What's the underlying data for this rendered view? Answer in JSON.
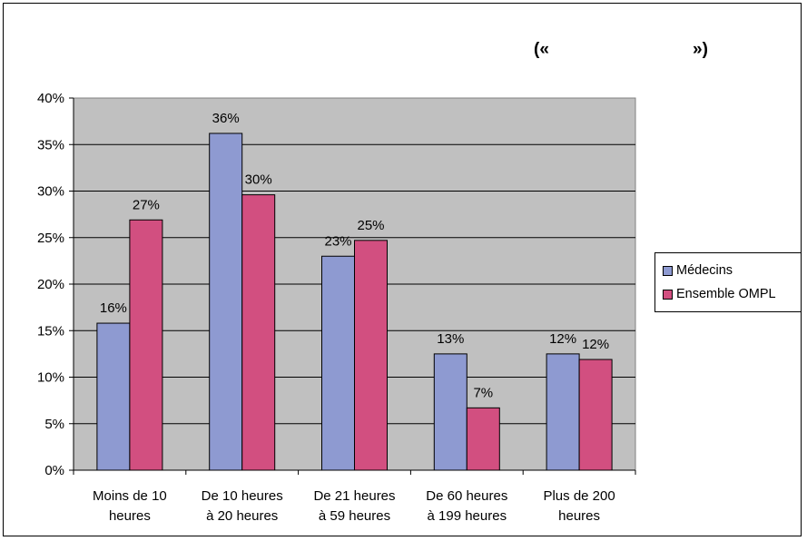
{
  "chart_data": {
    "type": "bar",
    "title_left": "(«",
    "title_right": "»)",
    "categories": [
      [
        "Moins de 10",
        "heures"
      ],
      [
        "De 10 heures",
        "à 20 heures"
      ],
      [
        "De 21 heures",
        "à 59 heures"
      ],
      [
        "De 60 heures",
        "à 199 heures"
      ],
      [
        "Plus de 200",
        "heures"
      ]
    ],
    "series": [
      {
        "name": "Médecins",
        "color": "#8E9AD1",
        "values": [
          0.16,
          0.36,
          0.23,
          0.13,
          0.12
        ],
        "labels": [
          "16%",
          "36%",
          "23%",
          "13%",
          "12%"
        ],
        "bar_heights": [
          0.158,
          0.362,
          0.23,
          0.125,
          0.125
        ]
      },
      {
        "name": "Ensemble OMPL",
        "color": "#D24F80",
        "values": [
          0.27,
          0.3,
          0.25,
          0.07,
          0.12
        ],
        "labels": [
          "27%",
          "30%",
          "25%",
          "7%",
          "12%"
        ],
        "bar_heights": [
          0.269,
          0.296,
          0.247,
          0.067,
          0.119
        ]
      }
    ],
    "yticks": [
      "0%",
      "5%",
      "10%",
      "15%",
      "20%",
      "25%",
      "30%",
      "35%",
      "40%"
    ],
    "ylim": [
      0,
      0.4
    ],
    "plot_background": "#C0C0C0",
    "grid": true,
    "legend_position": "right"
  }
}
